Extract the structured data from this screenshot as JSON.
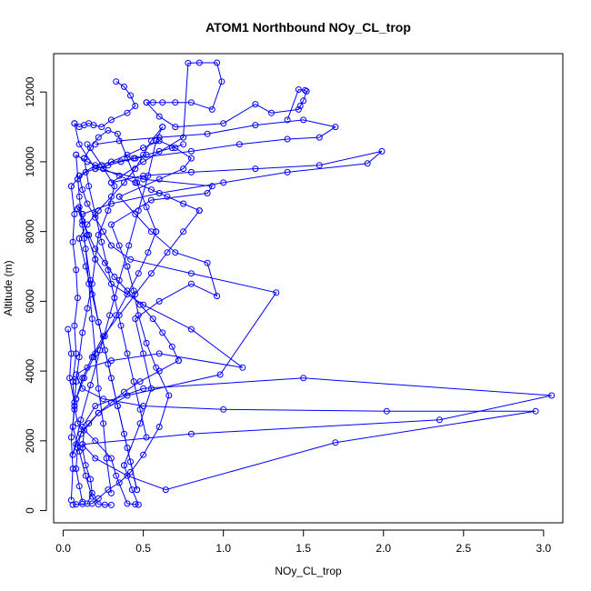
{
  "chart_data": {
    "type": "line",
    "title": "ATOM1 Northbound NOy_CL_trop",
    "xlabel": "NOy_CL_trop",
    "ylabel": "Altitude (m)",
    "xlim": [
      -0.06,
      3.12
    ],
    "ylim": [
      -350,
      13100
    ],
    "xticks": [
      0.0,
      0.5,
      1.0,
      1.5,
      2.0,
      2.5,
      3.0
    ],
    "xtick_labels": [
      "0.0",
      "0.5",
      "1.0",
      "1.5",
      "2.0",
      "2.5",
      "3.0"
    ],
    "yticks": [
      0,
      2000,
      4000,
      6000,
      8000,
      10000,
      12000
    ],
    "ytick_labels": [
      "0",
      "2000",
      "4000",
      "6000",
      "8000",
      "10000",
      "12000"
    ],
    "grid": false,
    "legend": "none",
    "series_color": "#0000ff",
    "marker": "open-circle",
    "series": [
      {
        "x": [
          0.06,
          0.08,
          0.12,
          0.18,
          0.22,
          0.28,
          0.35,
          0.42,
          0.5,
          0.6,
          0.66,
          0.58,
          0.52,
          0.47,
          0.44,
          0.4
        ],
        "y": [
          170,
          180,
          190,
          200,
          350,
          600,
          800,
          1100,
          1600,
          2400,
          3300,
          4100,
          4800,
          5600,
          6300,
          7000
        ]
      },
      {
        "x": [
          0.4,
          0.35,
          0.3,
          0.55,
          0.9,
          0.93,
          0.5,
          0.2,
          0.1,
          0.07
        ],
        "y": [
          7000,
          7600,
          8200,
          8900,
          9100,
          9300,
          9500,
          9800,
          10500,
          11100
        ]
      },
      {
        "x": [
          0.07,
          0.1,
          0.13,
          0.16,
          0.19,
          0.24,
          0.3,
          0.4,
          0.45,
          0.42,
          0.38,
          0.33
        ],
        "y": [
          11100,
          11000,
          11050,
          11100,
          11050,
          11000,
          11200,
          11400,
          11600,
          11900,
          12150,
          12300
        ]
      },
      {
        "x": [
          0.15,
          0.18,
          0.17,
          0.14,
          0.12,
          0.13,
          0.22,
          0.4,
          0.98,
          1.33,
          0.8,
          0.42,
          0.3,
          0.25,
          0.2,
          0.15,
          0.12,
          0.1
        ],
        "y": [
          200,
          500,
          900,
          1300,
          1800,
          2300,
          2800,
          3300,
          3900,
          6250,
          6800,
          7200,
          7600,
          8000,
          8400,
          8800,
          9200,
          9600
        ]
      },
      {
        "x": [
          0.1,
          0.2,
          0.45,
          0.8,
          1.1,
          1.4,
          1.6,
          1.7,
          1.5,
          1.2,
          0.9,
          0.6,
          0.35,
          0.2
        ],
        "y": [
          9600,
          9900,
          10100,
          10300,
          10500,
          10650,
          10700,
          11000,
          11200,
          11050,
          10800,
          10700,
          10600,
          10500
        ]
      },
      {
        "x": [
          0.12,
          0.1,
          0.08,
          0.09,
          0.12,
          0.2,
          0.5,
          1.5,
          3.05,
          2.35,
          0.8,
          0.12
        ],
        "y": [
          250,
          700,
          1200,
          1800,
          2400,
          3000,
          3500,
          3800,
          3300,
          2600,
          2200,
          1900
        ]
      },
      {
        "x": [
          0.12,
          0.2,
          0.4,
          0.64,
          1.7,
          2.95,
          2.02,
          1.0,
          0.5,
          0.25,
          0.12,
          0.08
        ],
        "y": [
          1900,
          1500,
          1000,
          600,
          1950,
          2850,
          2850,
          2900,
          3000,
          3200,
          3500,
          3900
        ]
      },
      {
        "x": [
          0.08,
          0.15,
          0.3,
          0.6,
          1.12,
          0.8,
          0.5,
          0.3,
          0.2,
          0.15,
          0.12
        ],
        "y": [
          3900,
          4100,
          4300,
          4500,
          4100,
          5200,
          5900,
          6500,
          7200,
          7900,
          8500
        ]
      },
      {
        "x": [
          0.12,
          0.3,
          0.6,
          1.0,
          1.4,
          1.9,
          1.99,
          1.6,
          1.2,
          0.8,
          0.5,
          0.3
        ],
        "y": [
          8500,
          8800,
          9100,
          9400,
          9700,
          9950,
          10300,
          9900,
          9800,
          9700,
          9600,
          9400
        ]
      },
      {
        "x": [
          0.3,
          0.5,
          0.75,
          0.78,
          0.85,
          0.96,
          0.99,
          0.93,
          0.8,
          0.7,
          0.62,
          0.56,
          0.52
        ],
        "y": [
          9400,
          10000,
          10700,
          12830,
          12840,
          12840,
          12300,
          11500,
          11700,
          11700,
          11700,
          11700,
          11700
        ]
      },
      {
        "x": [
          0.52,
          0.6,
          0.7,
          1.0,
          1.2,
          1.3,
          1.47,
          1.48,
          1.5,
          1.52,
          1.51,
          1.47,
          1.4
        ],
        "y": [
          11700,
          11300,
          11000,
          11100,
          11650,
          11400,
          11500,
          11600,
          11750,
          12020,
          12050,
          12070,
          11200
        ]
      },
      {
        "x": [
          0.15,
          0.24,
          0.32,
          0.28,
          0.22,
          0.2,
          0.18,
          0.15,
          0.12,
          0.1,
          0.08,
          0.07
        ],
        "y": [
          10500,
          9900,
          9300,
          8600,
          7900,
          7200,
          6500,
          5800,
          5100,
          4400,
          3700,
          3000
        ]
      },
      {
        "x": [
          0.07,
          0.09,
          0.2,
          0.3,
          0.33,
          0.4,
          0.45,
          0.47,
          0.43,
          0.38
        ],
        "y": [
          3000,
          2500,
          2000,
          1500,
          1000,
          200,
          180,
          170,
          600,
          1300
        ]
      },
      {
        "x": [
          0.38,
          0.48,
          0.55,
          0.5,
          0.45,
          0.6,
          0.8,
          0.96,
          0.9,
          0.7,
          0.55,
          0.45,
          0.35
        ],
        "y": [
          1300,
          2500,
          3500,
          4500,
          5500,
          6000,
          6500,
          6150,
          7100,
          7400,
          8000,
          8500,
          9000
        ]
      },
      {
        "x": [
          0.35,
          0.6,
          0.75,
          0.8,
          0.7,
          0.6,
          0.5,
          0.4,
          0.3,
          0.25
        ],
        "y": [
          9000,
          9500,
          9800,
          10100,
          10400,
          10600,
          10400,
          10200,
          10000,
          9800
        ]
      },
      {
        "x": [
          0.05,
          0.06,
          0.05,
          0.07,
          0.06,
          0.08,
          0.07,
          0.09,
          0.08,
          0.06,
          0.07,
          0.05
        ],
        "y": [
          300,
          1200,
          2100,
          2900,
          3700,
          4500,
          5300,
          6100,
          6900,
          7700,
          8500,
          9300
        ]
      },
      {
        "x": [
          0.05,
          0.09,
          0.14,
          0.2,
          0.28,
          0.36,
          0.44,
          0.52,
          0.6,
          0.68,
          0.75
        ],
        "y": [
          9300,
          9500,
          9700,
          9800,
          9900,
          10000,
          10100,
          10200,
          10300,
          10400,
          10500
        ]
      },
      {
        "x": [
          0.03,
          0.05,
          0.04,
          0.07,
          0.06,
          0.1,
          0.14,
          0.18,
          0.22,
          0.26,
          0.3
        ],
        "y": [
          5200,
          4500,
          3800,
          3100,
          2400,
          1700,
          1000,
          400,
          180,
          170,
          160
        ]
      },
      {
        "x": [
          0.3,
          0.27,
          0.25,
          0.22,
          0.2,
          0.18,
          0.16,
          0.14,
          0.12,
          0.1,
          0.09
        ],
        "y": [
          500,
          1500,
          2500,
          3500,
          4500,
          5500,
          6500,
          7500,
          8200,
          8700,
          8650
        ]
      },
      {
        "x": [
          0.09,
          0.12,
          0.16,
          0.2,
          0.26,
          0.32,
          0.4,
          0.48,
          0.56,
          0.62,
          0.68,
          0.72
        ],
        "y": [
          8650,
          8300,
          7900,
          7500,
          7100,
          6700,
          6300,
          5900,
          5500,
          5100,
          4700,
          4300
        ]
      },
      {
        "x": [
          0.72,
          0.6,
          0.48,
          0.38,
          0.3,
          0.22,
          0.16,
          0.11,
          0.08,
          0.06
        ],
        "y": [
          4300,
          4000,
          3700,
          3400,
          3100,
          2800,
          2500,
          2200,
          1900,
          1600
        ]
      },
      {
        "x": [
          0.06,
          0.11,
          0.17,
          0.23,
          0.29,
          0.35,
          0.41,
          0.47,
          0.53,
          0.58,
          0.62
        ],
        "y": [
          1600,
          2600,
          3600,
          4600,
          5600,
          6600,
          7600,
          8600,
          9600,
          10600,
          11000
        ]
      },
      {
        "x": [
          0.62,
          0.55,
          0.5,
          0.45,
          0.38,
          0.3,
          0.22,
          0.15,
          0.1
        ],
        "y": [
          11000,
          10600,
          10200,
          9800,
          9400,
          9000,
          8600,
          8200,
          7800
        ]
      },
      {
        "x": [
          0.1,
          0.14,
          0.18,
          0.22,
          0.26,
          0.3,
          0.34,
          0.38,
          0.42,
          0.46
        ],
        "y": [
          7800,
          7000,
          6200,
          5400,
          4600,
          3800,
          3000,
          2200,
          1400,
          600
        ]
      },
      {
        "x": [
          0.46,
          0.4,
          0.34,
          0.28,
          0.22,
          0.17,
          0.13,
          0.1,
          0.08
        ],
        "y": [
          600,
          1800,
          3000,
          4200,
          5400,
          6600,
          7800,
          9000,
          10200
        ]
      },
      {
        "x": [
          0.08,
          0.15,
          0.25,
          0.35,
          0.45,
          0.55,
          0.65,
          0.75,
          0.85
        ],
        "y": [
          10200,
          10000,
          9800,
          9600,
          9400,
          9200,
          9000,
          8800,
          8600
        ]
      },
      {
        "x": [
          0.85,
          0.75,
          0.65,
          0.55,
          0.45,
          0.35,
          0.25,
          0.18,
          0.12,
          0.08
        ],
        "y": [
          8600,
          8000,
          7400,
          6800,
          6200,
          5600,
          5000,
          4400,
          3800,
          3200
        ]
      },
      {
        "x": [
          0.08,
          0.13,
          0.19,
          0.26,
          0.33,
          0.4,
          0.47,
          0.53,
          0.58
        ],
        "y": [
          3200,
          3800,
          4400,
          5000,
          5600,
          6200,
          6800,
          7400,
          8000
        ]
      },
      {
        "x": [
          0.58,
          0.52,
          0.46,
          0.4,
          0.34,
          0.28,
          0.22,
          0.17,
          0.13
        ],
        "y": [
          8000,
          8700,
          9400,
          10100,
          10800,
          10900,
          10700,
          10400,
          10100
        ]
      },
      {
        "x": [
          0.13,
          0.16,
          0.2,
          0.24,
          0.28,
          0.32,
          0.36,
          0.4,
          0.44,
          0.48,
          0.52
        ],
        "y": [
          10100,
          9300,
          8500,
          7700,
          6900,
          6100,
          5300,
          4500,
          3700,
          2900,
          2100
        ]
      }
    ]
  }
}
